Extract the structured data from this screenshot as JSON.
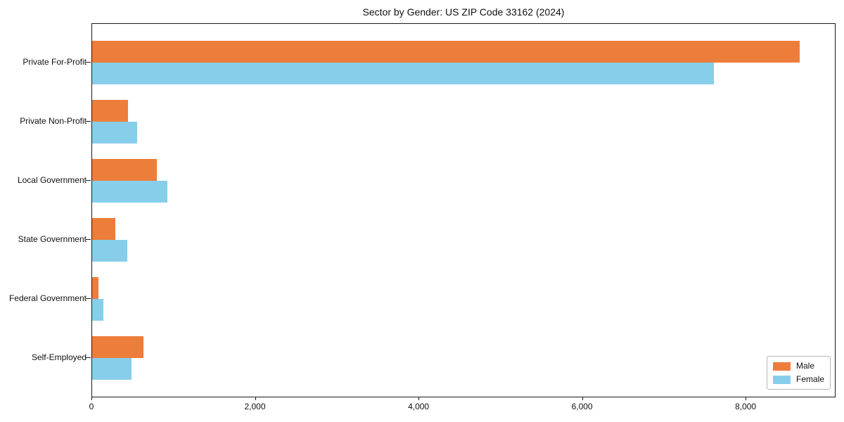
{
  "chart_data": {
    "type": "bar",
    "orientation": "horizontal",
    "title": "Sector by Gender: US ZIP Code 33162 (2024)",
    "categories": [
      "Private For-Profit",
      "Private Non-Profit",
      "Local Government",
      "State Government",
      "Federal Government",
      "Self-Employed"
    ],
    "series": [
      {
        "name": "Male",
        "color": "#ed7d3b",
        "values": [
          8650,
          435,
          795,
          285,
          75,
          625
        ]
      },
      {
        "name": "Female",
        "color": "#87ceeb",
        "values": [
          7600,
          550,
          920,
          430,
          140,
          480
        ]
      }
    ],
    "xlabel": "",
    "ylabel": "",
    "xlim": [
      0,
      9100
    ],
    "xticks": {
      "values": [
        0,
        2000,
        4000,
        6000,
        8000
      ],
      "labels": [
        "0",
        "2,000",
        "4,000",
        "6,000",
        "8,000"
      ]
    },
    "grid": false,
    "legend_position": "lower right",
    "frame_color": "#1a1a1a",
    "background_color": "#ffffff"
  }
}
